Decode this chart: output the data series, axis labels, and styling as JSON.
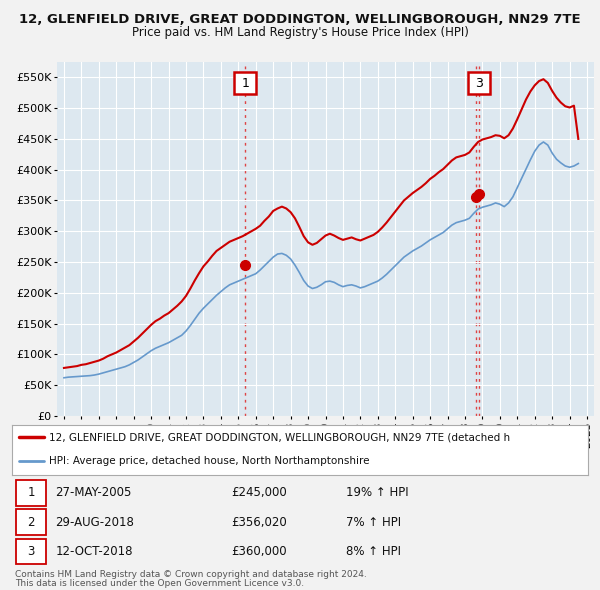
{
  "title": "12, GLENFIELD DRIVE, GREAT DODDINGTON, WELLINGBOROUGH, NN29 7TE",
  "subtitle": "Price paid vs. HM Land Registry's House Price Index (HPI)",
  "ylim": [
    0,
    575000
  ],
  "yticks": [
    0,
    50000,
    100000,
    150000,
    200000,
    250000,
    300000,
    350000,
    400000,
    450000,
    500000,
    550000
  ],
  "ytick_labels": [
    "£0",
    "£50K",
    "£100K",
    "£150K",
    "£200K",
    "£250K",
    "£300K",
    "£350K",
    "£400K",
    "£450K",
    "£500K",
    "£550K"
  ],
  "xlim_start": 1994.6,
  "xlim_end": 2025.4,
  "background_color": "#f2f2f2",
  "plot_bg_color": "#dde8f0",
  "grid_color": "#ffffff",
  "red_line_color": "#cc0000",
  "blue_line_color": "#6699cc",
  "hpi_x": [
    1995.0,
    1995.25,
    1995.5,
    1995.75,
    1996.0,
    1996.25,
    1996.5,
    1996.75,
    1997.0,
    1997.25,
    1997.5,
    1997.75,
    1998.0,
    1998.25,
    1998.5,
    1998.75,
    1999.0,
    1999.25,
    1999.5,
    1999.75,
    2000.0,
    2000.25,
    2000.5,
    2000.75,
    2001.0,
    2001.25,
    2001.5,
    2001.75,
    2002.0,
    2002.25,
    2002.5,
    2002.75,
    2003.0,
    2003.25,
    2003.5,
    2003.75,
    2004.0,
    2004.25,
    2004.5,
    2004.75,
    2005.0,
    2005.25,
    2005.5,
    2005.75,
    2006.0,
    2006.25,
    2006.5,
    2006.75,
    2007.0,
    2007.25,
    2007.5,
    2007.75,
    2008.0,
    2008.25,
    2008.5,
    2008.75,
    2009.0,
    2009.25,
    2009.5,
    2009.75,
    2010.0,
    2010.25,
    2010.5,
    2010.75,
    2011.0,
    2011.25,
    2011.5,
    2011.75,
    2012.0,
    2012.25,
    2012.5,
    2012.75,
    2013.0,
    2013.25,
    2013.5,
    2013.75,
    2014.0,
    2014.25,
    2014.5,
    2014.75,
    2015.0,
    2015.25,
    2015.5,
    2015.75,
    2016.0,
    2016.25,
    2016.5,
    2016.75,
    2017.0,
    2017.25,
    2017.5,
    2017.75,
    2018.0,
    2018.25,
    2018.5,
    2018.75,
    2019.0,
    2019.25,
    2019.5,
    2019.75,
    2020.0,
    2020.25,
    2020.5,
    2020.75,
    2021.0,
    2021.25,
    2021.5,
    2021.75,
    2022.0,
    2022.25,
    2022.5,
    2022.75,
    2023.0,
    2023.25,
    2023.5,
    2023.75,
    2024.0,
    2024.25,
    2024.5
  ],
  "hpi_y": [
    62000,
    63000,
    63500,
    64000,
    64500,
    65000,
    65500,
    66500,
    68000,
    70000,
    72000,
    74000,
    76000,
    78000,
    80000,
    83000,
    87000,
    91000,
    96000,
    101000,
    106000,
    110000,
    113000,
    116000,
    119000,
    123000,
    127000,
    131000,
    138000,
    147000,
    157000,
    167000,
    175000,
    182000,
    189000,
    196000,
    202000,
    208000,
    213000,
    216000,
    219000,
    222000,
    225000,
    228000,
    231000,
    237000,
    244000,
    251000,
    258000,
    263000,
    264000,
    261000,
    255000,
    245000,
    233000,
    220000,
    211000,
    207000,
    209000,
    213000,
    218000,
    219000,
    217000,
    213000,
    210000,
    212000,
    213000,
    211000,
    208000,
    210000,
    213000,
    216000,
    219000,
    224000,
    230000,
    237000,
    244000,
    251000,
    258000,
    263000,
    268000,
    272000,
    276000,
    281000,
    286000,
    290000,
    294000,
    298000,
    304000,
    310000,
    314000,
    316000,
    318000,
    321000,
    329000,
    336000,
    339000,
    341000,
    343000,
    346000,
    344000,
    340000,
    346000,
    356000,
    371000,
    386000,
    401000,
    416000,
    430000,
    440000,
    445000,
    440000,
    427000,
    417000,
    411000,
    406000,
    404000,
    406000,
    410000
  ],
  "price_x": [
    1995.0,
    1995.25,
    1995.5,
    1995.75,
    1996.0,
    1996.25,
    1996.5,
    1996.75,
    1997.0,
    1997.25,
    1997.5,
    1997.75,
    1998.0,
    1998.25,
    1998.5,
    1998.75,
    1999.0,
    1999.25,
    1999.5,
    1999.75,
    2000.0,
    2000.25,
    2000.5,
    2000.75,
    2001.0,
    2001.25,
    2001.5,
    2001.75,
    2002.0,
    2002.25,
    2002.5,
    2002.75,
    2003.0,
    2003.25,
    2003.5,
    2003.75,
    2004.0,
    2004.25,
    2004.5,
    2004.75,
    2005.0,
    2005.25,
    2005.5,
    2005.75,
    2006.0,
    2006.25,
    2006.5,
    2006.75,
    2007.0,
    2007.25,
    2007.5,
    2007.75,
    2008.0,
    2008.25,
    2008.5,
    2008.75,
    2009.0,
    2009.25,
    2009.5,
    2009.75,
    2010.0,
    2010.25,
    2010.5,
    2010.75,
    2011.0,
    2011.25,
    2011.5,
    2011.75,
    2012.0,
    2012.25,
    2012.5,
    2012.75,
    2013.0,
    2013.25,
    2013.5,
    2013.75,
    2014.0,
    2014.25,
    2014.5,
    2014.75,
    2015.0,
    2015.25,
    2015.5,
    2015.75,
    2016.0,
    2016.25,
    2016.5,
    2016.75,
    2017.0,
    2017.25,
    2017.5,
    2017.75,
    2018.0,
    2018.25,
    2018.5,
    2018.75,
    2019.0,
    2019.25,
    2019.5,
    2019.75,
    2020.0,
    2020.25,
    2020.5,
    2020.75,
    2021.0,
    2021.25,
    2021.5,
    2021.75,
    2022.0,
    2022.25,
    2022.5,
    2022.75,
    2023.0,
    2023.25,
    2023.5,
    2023.75,
    2024.0,
    2024.25,
    2024.5
  ],
  "price_y": [
    78000,
    79000,
    80000,
    81000,
    83000,
    84000,
    86000,
    88000,
    90000,
    93000,
    97000,
    100000,
    103000,
    107000,
    111000,
    115000,
    121000,
    127000,
    134000,
    141000,
    148000,
    154000,
    158000,
    163000,
    167000,
    173000,
    179000,
    186000,
    195000,
    207000,
    220000,
    232000,
    243000,
    251000,
    260000,
    268000,
    273000,
    278000,
    283000,
    286000,
    289000,
    292000,
    296000,
    300000,
    304000,
    309000,
    317000,
    324000,
    333000,
    337000,
    340000,
    337000,
    331000,
    321000,
    307000,
    292000,
    282000,
    278000,
    281000,
    287000,
    293000,
    296000,
    293000,
    289000,
    286000,
    288000,
    290000,
    287000,
    285000,
    288000,
    291000,
    294000,
    299000,
    306000,
    314000,
    323000,
    332000,
    341000,
    350000,
    356000,
    362000,
    367000,
    372000,
    378000,
    385000,
    390000,
    396000,
    401000,
    408000,
    415000,
    420000,
    422000,
    424000,
    428000,
    437000,
    445000,
    449000,
    451000,
    453000,
    456000,
    455000,
    451000,
    456000,
    467000,
    482000,
    498000,
    514000,
    527000,
    537000,
    544000,
    547000,
    541000,
    528000,
    517000,
    509000,
    503000,
    501000,
    504000,
    450000
  ],
  "sale1_x": 2005.41,
  "sale1_y": 245000,
  "sale1_label": "1",
  "sale2_x": 2018.66,
  "sale2_y": 356020,
  "sale2_label": "2",
  "sale3_x": 2018.79,
  "sale3_y": 360000,
  "sale3_label": "3",
  "vline_color": "#dd4444",
  "vline_style": ":",
  "marker_box_color": "#cc0000",
  "legend_label_red": "12, GLENFIELD DRIVE, GREAT DODDINGTON, WELLINGBOROUGH, NN29 7TE (detached h",
  "legend_label_blue": "HPI: Average price, detached house, North Northamptonshire",
  "table_rows": [
    {
      "num": "1",
      "date": "27-MAY-2005",
      "price": "£245,000",
      "change": "19% ↑ HPI"
    },
    {
      "num": "2",
      "date": "29-AUG-2018",
      "price": "£356,020",
      "change": "7% ↑ HPI"
    },
    {
      "num": "3",
      "date": "12-OCT-2018",
      "price": "£360,000",
      "change": "8% ↑ HPI"
    }
  ],
  "footnote1": "Contains HM Land Registry data © Crown copyright and database right 2024.",
  "footnote2": "This data is licensed under the Open Government Licence v3.0."
}
